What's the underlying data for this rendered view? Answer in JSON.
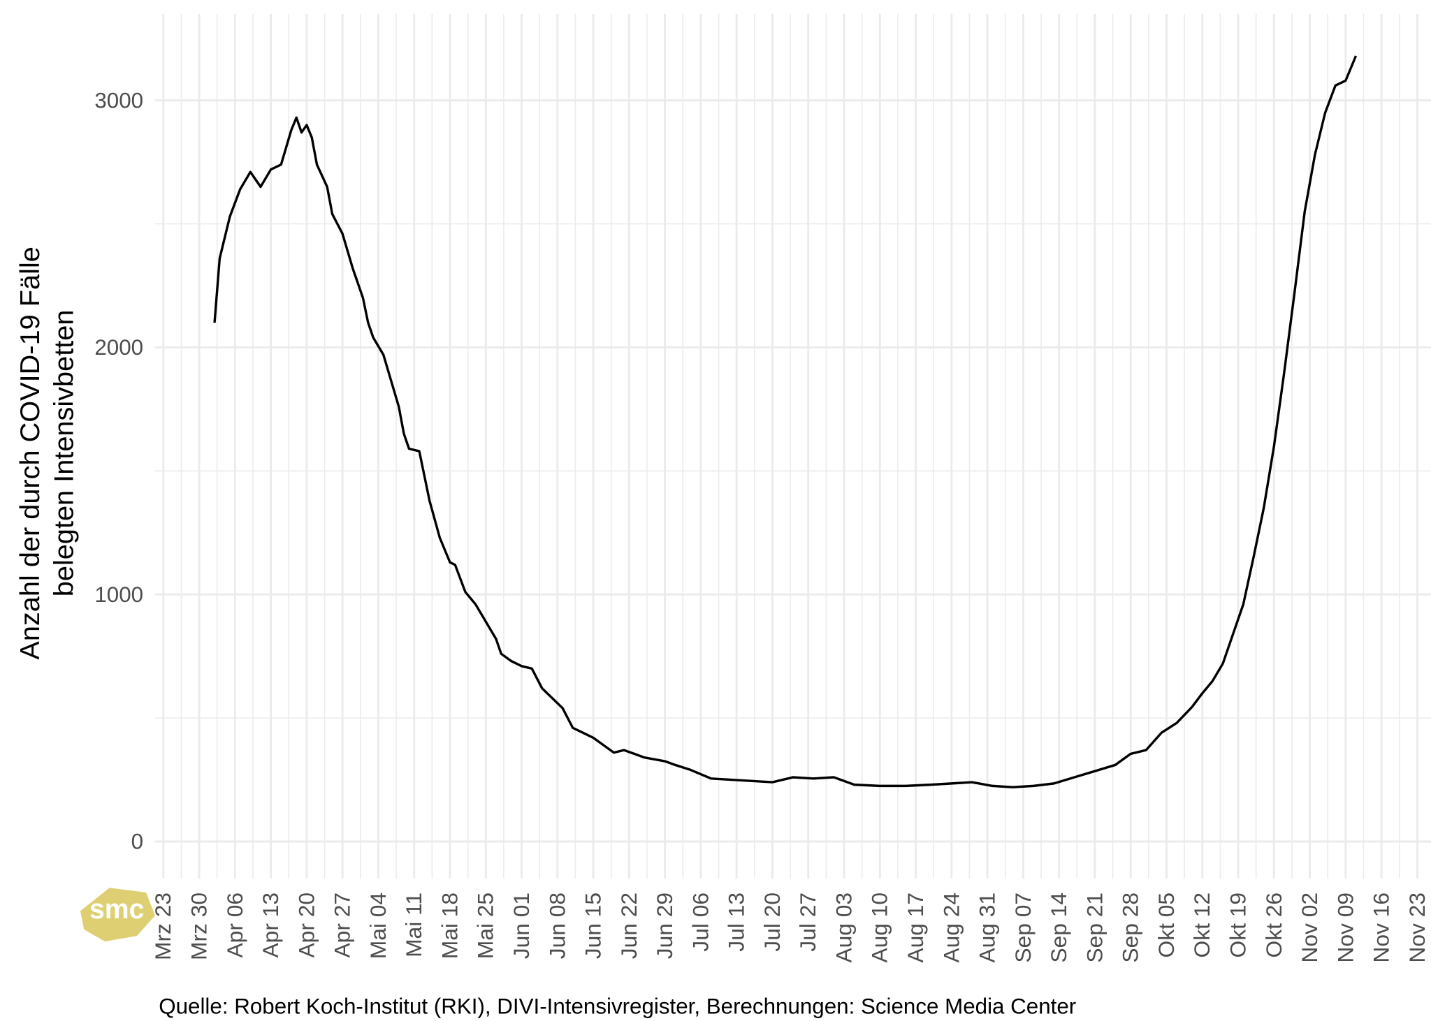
{
  "chart_data": {
    "type": "line",
    "ylabel": [
      "Anzahl der durch COVID-19 Fälle",
      "belegten Intensivbetten"
    ],
    "caption": "Quelle: Robert Koch-Institut (RKI), DIVI-Intensivregister, Berechnungen: Science Media Center",
    "logo": "smc",
    "grid": true,
    "ylim": [
      -150,
      3350
    ],
    "yticks": [
      0,
      1000,
      2000,
      3000
    ],
    "xticks": [
      "Mrz 23",
      "Mrz 30",
      "Apr 06",
      "Apr 13",
      "Apr 20",
      "Apr 27",
      "Mai 04",
      "Mai 11",
      "Mai 18",
      "Mai 25",
      "Jun 01",
      "Jun 08",
      "Jun 15",
      "Jun 22",
      "Jun 29",
      "Jul 06",
      "Jul 13",
      "Jul 20",
      "Jul 27",
      "Aug 03",
      "Aug 10",
      "Aug 17",
      "Aug 24",
      "Aug 31",
      "Sep 07",
      "Sep 14",
      "Sep 21",
      "Sep 28",
      "Okt 05",
      "Okt 12",
      "Okt 19",
      "Okt 26",
      "Nov 02",
      "Nov 09",
      "Nov 16",
      "Nov 23"
    ],
    "series": [
      {
        "color": "#000000",
        "x": [
          "Apr 02",
          "Apr 03",
          "Apr 05",
          "Apr 07",
          "Apr 09",
          "Apr 11",
          "Apr 13",
          "Apr 15",
          "Apr 17",
          "Apr 18",
          "Apr 19",
          "Apr 20",
          "Apr 21",
          "Apr 22",
          "Apr 24",
          "Apr 25",
          "Apr 27",
          "Apr 29",
          "Mai 01",
          "Mai 02",
          "Mai 03",
          "Mai 05",
          "Mai 07",
          "Mai 08",
          "Mai 09",
          "Mai 10",
          "Mai 12",
          "Mai 14",
          "Mai 16",
          "Mai 18",
          "Mai 19",
          "Mai 21",
          "Mai 23",
          "Mai 25",
          "Mai 27",
          "Mai 28",
          "Mai 30",
          "Jun 01",
          "Jun 03",
          "Jun 05",
          "Jun 07",
          "Jun 09",
          "Jun 11",
          "Jun 13",
          "Jun 15",
          "Jun 17",
          "Jun 19",
          "Jun 21",
          "Jun 23",
          "Jun 25",
          "Jun 29",
          "Jul 01",
          "Jul 04",
          "Jul 08",
          "Jul 12",
          "Jul 16",
          "Jul 20",
          "Jul 24",
          "Jul 28",
          "Aug 01",
          "Aug 05",
          "Aug 10",
          "Aug 15",
          "Aug 20",
          "Aug 24",
          "Aug 28",
          "Sep 01",
          "Sep 05",
          "Sep 09",
          "Sep 13",
          "Sep 17",
          "Sep 21",
          "Sep 25",
          "Sep 28",
          "Okt 01",
          "Okt 04",
          "Okt 07",
          "Okt 10",
          "Okt 12",
          "Okt 14",
          "Okt 16",
          "Okt 18",
          "Okt 20",
          "Okt 22",
          "Okt 24",
          "Okt 26",
          "Okt 28",
          "Okt 30",
          "Nov 01",
          "Nov 03",
          "Nov 05",
          "Nov 07",
          "Nov 09",
          "Nov 11"
        ],
        "values": [
          2100,
          2360,
          2530,
          2640,
          2710,
          2650,
          2720,
          2740,
          2880,
          2930,
          2870,
          2900,
          2850,
          2740,
          2650,
          2540,
          2460,
          2320,
          2200,
          2100,
          2040,
          1970,
          1830,
          1760,
          1650,
          1590,
          1580,
          1380,
          1230,
          1130,
          1120,
          1010,
          960,
          890,
          820,
          760,
          730,
          710,
          700,
          620,
          580,
          540,
          460,
          440,
          420,
          390,
          360,
          370,
          355,
          340,
          325,
          310,
          290,
          255,
          250,
          245,
          240,
          260,
          255,
          260,
          230,
          225,
          225,
          230,
          235,
          240,
          225,
          220,
          225,
          235,
          260,
          285,
          310,
          355,
          370,
          440,
          480,
          545,
          600,
          650,
          720,
          840,
          960,
          1150,
          1350,
          1600,
          1900,
          2220,
          2550,
          2780,
          2950,
          3060,
          3080,
          3180
        ]
      }
    ]
  }
}
